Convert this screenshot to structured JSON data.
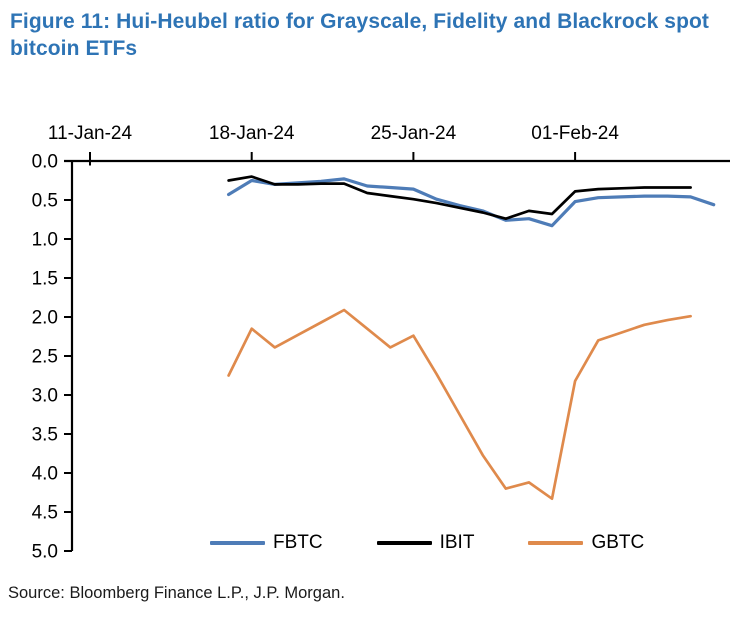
{
  "figure": {
    "title": "Figure 11: Hui-Heubel ratio for Grayscale, Fidelity and Blackrock spot bitcoin ETFs",
    "title_color": "#2e74b5",
    "source": "Source: Bloomberg Finance L.P., J.P. Morgan."
  },
  "chart_data": {
    "type": "line",
    "title": "Hui-Heubel ratio for Grayscale, Fidelity and Blackrock spot bitcoin ETFs",
    "grid": false,
    "legend_position": "bottom-center",
    "axis_color": "#000000",
    "x_axis": {
      "unit": "date (daily, days offset from 11-Jan-24)",
      "range_days": [
        0,
        27.7
      ],
      "ticks": [
        {
          "label": "11-Jan-24",
          "day": 0
        },
        {
          "label": "18-Jan-24",
          "day": 7
        },
        {
          "label": "25-Jan-24",
          "day": 14
        },
        {
          "label": "01-Feb-24",
          "day": 21
        }
      ]
    },
    "y_axis": {
      "range": [
        0,
        5
      ],
      "inverted": true,
      "tick_step": 0.5,
      "tick_labels": [
        "0.0",
        "0.5",
        "1.0",
        "1.5",
        "2.0",
        "2.5",
        "3.0",
        "3.5",
        "4.0",
        "4.5",
        "5.0"
      ]
    },
    "series": [
      {
        "name": "GBTC",
        "color": "#df8a4c",
        "stroke_width": 2.7,
        "start_day": 6,
        "values": [
          2.75,
          2.15,
          2.39,
          2.23,
          2.07,
          1.91,
          2.15,
          2.39,
          2.24,
          2.73,
          3.25,
          3.77,
          4.2,
          4.12,
          4.33,
          2.82,
          2.3,
          2.2,
          2.1,
          2.04,
          1.99
        ]
      },
      {
        "name": "FBTC",
        "color": "#4e7cb7",
        "stroke_width": 3.2,
        "start_day": 6,
        "values": [
          0.43,
          0.25,
          0.3,
          0.28,
          0.26,
          0.23,
          0.32,
          0.34,
          0.36,
          0.49,
          0.57,
          0.64,
          0.76,
          0.74,
          0.83,
          0.52,
          0.47,
          0.46,
          0.45,
          0.45,
          0.46,
          0.56
        ]
      },
      {
        "name": "IBIT",
        "color": "#000000",
        "stroke_width": 2.7,
        "start_day": 6,
        "values": [
          0.25,
          0.2,
          0.3,
          0.3,
          0.29,
          0.29,
          0.41,
          0.45,
          0.49,
          0.54,
          0.6,
          0.66,
          0.74,
          0.64,
          0.68,
          0.39,
          0.36,
          0.35,
          0.34,
          0.34,
          0.34
        ]
      }
    ]
  }
}
